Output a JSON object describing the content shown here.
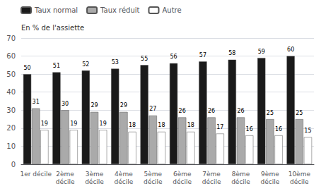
{
  "chart_data": {
    "type": "bar",
    "ylabel": "En % de l'assiette",
    "categories": [
      "1er décile",
      "2ème\ndécile",
      "3ème\ndécile",
      "4ème\ndécile",
      "5ème\ndécile",
      "6ème\ndécile",
      "7ème\ndécile",
      "8ème\ndécile",
      "9ème\ndécile",
      "10ème\ndécile"
    ],
    "series": [
      {
        "name": "Taux normal",
        "color": "#1a1a1a",
        "values": [
          50,
          51,
          52,
          53,
          55,
          56,
          57,
          58,
          59,
          60
        ]
      },
      {
        "name": "Taux réduit",
        "color": "#aaaaaa",
        "values": [
          31,
          30,
          29,
          29,
          27,
          26,
          26,
          26,
          25,
          25
        ]
      },
      {
        "name": "Autre",
        "color": "#ffffff",
        "values": [
          19,
          19,
          19,
          18,
          18,
          18,
          17,
          16,
          16,
          15
        ]
      }
    ],
    "ylim": [
      0,
      70
    ],
    "yticks": [
      0,
      10,
      20,
      30,
      40,
      50,
      60,
      70
    ],
    "grid": true,
    "legend": "upper left",
    "data_labels": true
  }
}
